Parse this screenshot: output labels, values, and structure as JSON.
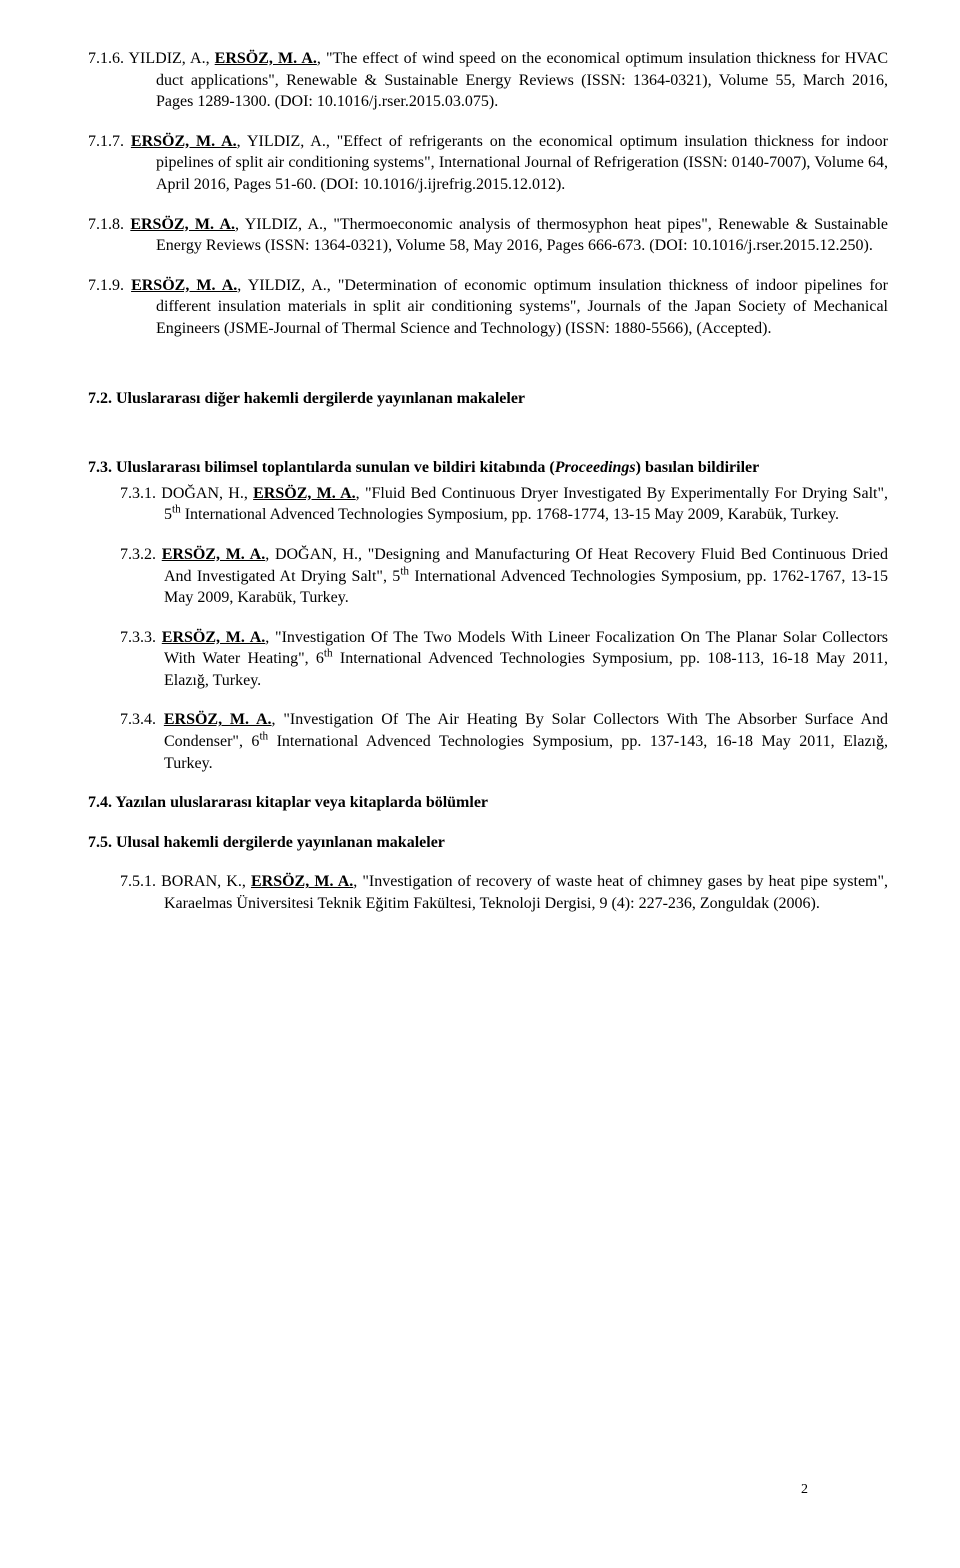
{
  "refs716": "7.1.6. YILDIZ, A., <b><u>ERSÖZ, M. A.</u></b>, \"The effect of wind speed on the economical optimum insulation thickness for HVAC duct applications\", Renewable & Sustainable Energy Reviews (ISSN: 1364-0321), Volume 55, March 2016, Pages 1289-1300. (DOI: 10.1016/j.rser.2015.03.075).",
  "refs717": "7.1.7. <b><u>ERSÖZ, M. A.</u></b>, YILDIZ, A., \"Effect of refrigerants on the economical optimum insulation thickness for indoor pipelines of split air conditioning systems\", International Journal of Refrigeration (ISSN: 0140-7007), Volume 64, April 2016, Pages 51-60. (DOI: 10.1016/j.ijrefrig.2015.12.012).",
  "refs718": "7.1.8. <b><u>ERSÖZ, M. A.</u></b>, YILDIZ, A., \"Thermoeconomic analysis of thermosyphon heat pipes\", Renewable & Sustainable Energy Reviews (ISSN: 1364-0321), Volume 58, May 2016, Pages 666-673. (DOI: 10.1016/j.rser.2015.12.250).",
  "refs719": "7.1.9. <b><u>ERSÖZ, M. A.</u></b>, YILDIZ, A., \"Determination of economic optimum insulation thickness of indoor pipelines for different insulation materials in split air conditioning systems\", Journals of the Japan Society of Mechanical Engineers (JSME-Journal of Thermal Science and Technology) (ISSN: 1880-5566), (Accepted).",
  "sec72": "7.2. Uluslararası diğer hakemli dergilerde yayınlanan makaleler",
  "sec73": "7.3. Uluslararası bilimsel toplantılarda sunulan ve bildiri kitabında (<i>Proceedings</i>) basılan bildiriler",
  "refs731": "7.3.1. DOĞAN, H., <b><u>ERSÖZ, M. A.</u></b>, \"Fluid Bed Continuous Dryer Investigated By Experimentally For Drying Salt\", 5<span class=\"sup\">th</span> International Advenced Technologies Symposium, pp. 1768-1774, 13-15 May 2009, Karabük, Turkey.",
  "refs732": "7.3.2. <b><u>ERSÖZ, M. A.</u></b>, DOĞAN, H., \"Designing and Manufacturing Of Heat Recovery Fluid Bed Continuous Dried And Investigated At Drying Salt\", 5<span class=\"sup\">th</span> International Advenced Technologies Symposium, pp. 1762-1767, 13-15 May 2009, Karabük, Turkey.",
  "refs733": "7.3.3. <b><u>ERSÖZ, M. A.</u></b>, \"Investigation Of The Two Models With Lineer Focalization On The Planar Solar Collectors With Water Heating\", 6<span class=\"sup\">th</span> International Advenced Technologies Symposium, pp. 108-113, 16-18 May 2011, Elazığ, Turkey.",
  "refs734": "7.3.4. <b><u>ERSÖZ, M. A.</u></b>, \"Investigation Of The Air Heating By Solar Collectors With The Absorber Surface And Condenser\", 6<span class=\"sup\">th</span> International Advenced Technologies Symposium, pp. 137-143, 16-18 May 2011, Elazığ, Turkey.",
  "sec74": "7.4. Yazılan uluslararası kitaplar veya kitaplarda bölümler",
  "sec75": "7.5. Ulusal hakemli dergilerde yayınlanan makaleler",
  "refs751": "7.5.1. BORAN, K., <b><u>ERSÖZ, M. A.</u></b>, \"Investigation of recovery of waste heat of chimney gases by heat pipe system\", Karaelmas Üniversitesi Teknik Eğitim Fakültesi, Teknoloji Dergisi, 9 (4): 227-236, Zonguldak (2006).",
  "page_number": "2"
}
